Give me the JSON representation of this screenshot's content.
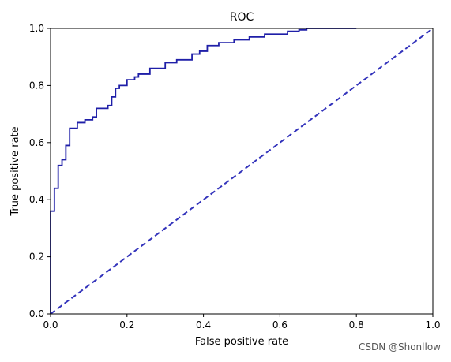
{
  "chart_data": {
    "type": "line",
    "title": "ROC",
    "xlabel": "False positive rate",
    "ylabel": "True positive rate",
    "xlim": [
      0.0,
      1.0
    ],
    "ylim": [
      0.0,
      1.0
    ],
    "xticks": [
      "0.0",
      "0.2",
      "0.4",
      "0.6",
      "0.8",
      "1.0"
    ],
    "yticks": [
      "0.0",
      "0.2",
      "0.4",
      "0.6",
      "0.8",
      "1.0"
    ],
    "grid": false,
    "series": [
      {
        "style": "solid-step",
        "color": "#1f1fa8",
        "x": [
          0.0,
          0.0,
          0.01,
          0.01,
          0.02,
          0.02,
          0.03,
          0.03,
          0.04,
          0.04,
          0.05,
          0.05,
          0.07,
          0.07,
          0.09,
          0.09,
          0.11,
          0.11,
          0.12,
          0.12,
          0.15,
          0.15,
          0.16,
          0.16,
          0.17,
          0.17,
          0.18,
          0.18,
          0.2,
          0.2,
          0.22,
          0.22,
          0.23,
          0.23,
          0.26,
          0.26,
          0.3,
          0.3,
          0.33,
          0.33,
          0.37,
          0.37,
          0.39,
          0.39,
          0.41,
          0.41,
          0.44,
          0.44,
          0.48,
          0.48,
          0.52,
          0.52,
          0.56,
          0.56,
          0.59,
          0.59,
          0.62,
          0.62,
          0.65,
          0.65,
          0.67,
          0.67,
          0.8
        ],
        "y": [
          0.0,
          0.36,
          0.36,
          0.44,
          0.44,
          0.52,
          0.52,
          0.54,
          0.54,
          0.59,
          0.59,
          0.65,
          0.65,
          0.67,
          0.67,
          0.68,
          0.68,
          0.69,
          0.69,
          0.72,
          0.72,
          0.73,
          0.73,
          0.76,
          0.76,
          0.79,
          0.79,
          0.8,
          0.8,
          0.82,
          0.82,
          0.83,
          0.83,
          0.84,
          0.84,
          0.86,
          0.86,
          0.88,
          0.88,
          0.89,
          0.89,
          0.91,
          0.91,
          0.92,
          0.92,
          0.94,
          0.94,
          0.95,
          0.95,
          0.96,
          0.96,
          0.97,
          0.97,
          0.98,
          0.98,
          0.98,
          0.98,
          0.99,
          0.99,
          0.995,
          0.995,
          1.0,
          1.0
        ]
      },
      {
        "style": "dashed",
        "color": "#3333bb",
        "x": [
          0.0,
          1.0
        ],
        "y": [
          0.0,
          1.0
        ]
      }
    ]
  },
  "watermark": "CSDN @Shonllow"
}
